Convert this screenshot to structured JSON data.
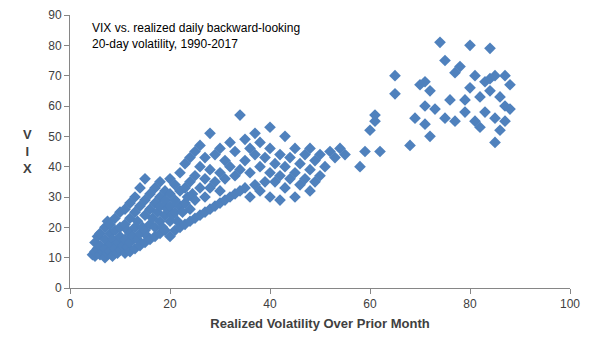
{
  "chart_data": {
    "type": "scatter",
    "title": "VIX vs. realized daily backward-looking\n20-day volatility, 1990-2017",
    "x_label": "Realized Volatility Over Prior Month",
    "y_label": "VIX",
    "color": "#4f81bd",
    "marker": "diamond",
    "grid": false,
    "xlim": [
      0,
      100
    ],
    "xticks": [
      0,
      20,
      40,
      60,
      80,
      100
    ],
    "ylim": [
      0,
      90
    ],
    "yticks": [
      0,
      10,
      20,
      30,
      40,
      50,
      60,
      70,
      80,
      90
    ],
    "x": [
      4.5,
      5,
      5,
      5.5,
      5,
      5.5,
      6,
      6,
      6,
      6.5,
      7,
      7,
      7,
      7,
      7.5,
      7.5,
      8,
      8,
      8,
      8,
      8.5,
      8.5,
      9,
      9,
      9,
      9.5,
      9.5,
      10,
      10,
      10,
      10,
      10.5,
      11,
      11,
      11,
      11,
      11.5,
      11.5,
      12,
      12,
      12,
      12,
      12,
      12.5,
      13,
      13,
      13,
      13,
      13.5,
      13.5,
      14,
      14,
      14,
      14,
      14.5,
      15,
      15,
      15,
      15,
      15,
      15.5,
      16,
      16,
      16,
      16,
      16.5,
      17,
      17,
      17,
      17,
      17.5,
      18,
      18,
      18,
      18,
      18,
      18.5,
      19,
      19,
      19,
      19,
      19.5,
      20,
      20,
      20,
      20,
      20,
      20.5,
      21,
      21,
      21,
      21,
      21.5,
      22,
      22,
      22,
      22,
      22.5,
      23,
      23,
      23,
      23,
      23.5,
      24,
      24,
      24,
      24,
      24.5,
      25,
      25,
      25,
      25,
      26,
      26,
      26,
      26,
      27,
      27,
      27,
      27,
      28,
      28,
      28,
      28,
      29,
      29,
      29,
      30,
      30,
      30,
      30,
      31,
      31,
      31,
      32,
      32,
      32,
      33,
      33,
      33,
      34,
      34,
      34,
      35,
      35,
      35,
      36,
      36,
      36,
      37,
      37,
      37,
      38,
      38,
      38,
      39,
      39,
      40,
      40,
      40,
      40,
      41,
      41,
      42,
      42,
      42,
      43,
      43,
      43,
      44,
      44,
      45,
      45,
      45,
      46,
      46,
      47,
      47,
      48,
      48,
      48,
      49,
      49,
      50,
      50,
      51,
      52,
      53,
      54,
      55,
      58,
      59,
      60,
      61,
      61,
      62,
      65,
      65,
      68,
      69,
      70,
      71,
      71,
      71,
      72,
      72,
      73,
      74,
      75,
      75,
      76,
      77,
      77,
      78,
      79,
      79,
      80,
      80,
      81,
      81,
      82,
      82,
      83,
      83,
      84,
      84,
      84,
      85,
      85,
      85,
      86,
      86,
      87,
      87,
      87,
      88,
      88
    ],
    "values": [
      11,
      10.5,
      12,
      13,
      15,
      17,
      11,
      14,
      18,
      12,
      10,
      13,
      16,
      20,
      11.5,
      22,
      12,
      14.5,
      18,
      21,
      10.5,
      16,
      13,
      19,
      23,
      11.5,
      15,
      12.5,
      17,
      20,
      25,
      14,
      11.5,
      16,
      21,
      26,
      13.5,
      19,
      12,
      15,
      18,
      23,
      28,
      17,
      13,
      20,
      25,
      30,
      16,
      22,
      14,
      18,
      27,
      33,
      20,
      15,
      19,
      24,
      29,
      36,
      17,
      16,
      21,
      26,
      31,
      23,
      17,
      20,
      28,
      33,
      25,
      18,
      22,
      27,
      30,
      35,
      20,
      19,
      24,
      29,
      32,
      26,
      17,
      22,
      27,
      31,
      36,
      24,
      19,
      25,
      29,
      34,
      22,
      20,
      27,
      32,
      38,
      25,
      21,
      28,
      33,
      41,
      30,
      22,
      26,
      35,
      43,
      31,
      23,
      29,
      37,
      45,
      24,
      33,
      40,
      47,
      25,
      30,
      36,
      43,
      26,
      33,
      39,
      51,
      27,
      35,
      44,
      28,
      32,
      38,
      46,
      29,
      36,
      42,
      30,
      40,
      48,
      31,
      37,
      45,
      32,
      39,
      57,
      33,
      42,
      49,
      30,
      38,
      46,
      34,
      44,
      51,
      32,
      40,
      48,
      35,
      43,
      30,
      38,
      46,
      53,
      35,
      41,
      29,
      37,
      44,
      33,
      40,
      50,
      36,
      43,
      30,
      38,
      46,
      34,
      41,
      36,
      44,
      32,
      39,
      46,
      35,
      42,
      37,
      44,
      40,
      45,
      43,
      46,
      44,
      40,
      45,
      52,
      55,
      57,
      45,
      64,
      70,
      47,
      56,
      67,
      54,
      60,
      68,
      50,
      65,
      59,
      81,
      75,
      56,
      62,
      55,
      71,
      73,
      58,
      62,
      80,
      66,
      55,
      70,
      53,
      63,
      58,
      68,
      79,
      65,
      69,
      56,
      48,
      70,
      52,
      63,
      70,
      60,
      55,
      67,
      59
    ]
  }
}
